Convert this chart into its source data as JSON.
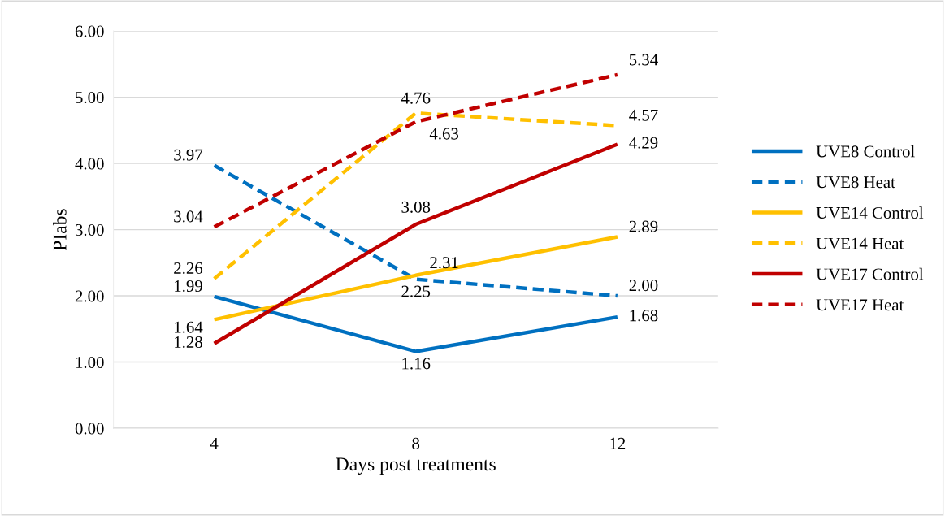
{
  "chart_data": {
    "type": "line",
    "xlabel": "Days post treatments",
    "ylabel": "PIabs",
    "categories": [
      "4",
      "8",
      "12"
    ],
    "series": [
      {
        "name": "UVE8 Control",
        "color": "#0070c0",
        "values": [
          1.99,
          1.16,
          1.68
        ],
        "value_labels": [
          "1.99",
          "1.16",
          "1.68"
        ],
        "line_style": "solid"
      },
      {
        "name": "UVE8 Heat",
        "color": "#0070c0",
        "values": [
          3.97,
          2.25,
          2.0
        ],
        "value_labels": [
          "3.97",
          "2.25",
          "2.00"
        ],
        "line_style": "dashed"
      },
      {
        "name": "UVE14 Control",
        "color": "#ffc000",
        "values": [
          1.64,
          2.31,
          2.89
        ],
        "value_labels": [
          "1.64",
          "2.31",
          "2.89"
        ],
        "line_style": "solid"
      },
      {
        "name": "UVE14 Heat",
        "color": "#ffc000",
        "values": [
          2.26,
          4.76,
          4.57
        ],
        "value_labels": [
          "2.26",
          "4.76",
          "4.57"
        ],
        "line_style": "dashed"
      },
      {
        "name": "UVE17 Control",
        "color": "#c00000",
        "values": [
          1.28,
          3.08,
          4.29
        ],
        "value_labels": [
          "1.28",
          "3.08",
          "4.29"
        ],
        "line_style": "solid"
      },
      {
        "name": "UVE17 Heat",
        "color": "#c00000",
        "values": [
          3.04,
          4.63,
          5.34
        ],
        "value_labels": [
          "3.04",
          "4.63",
          "5.34"
        ],
        "line_style": "dashed"
      }
    ],
    "ylim": [
      0,
      6
    ],
    "yticks": [
      {
        "value": 0,
        "label": "0.00"
      },
      {
        "value": 1,
        "label": "1.00"
      },
      {
        "value": 2,
        "label": "2.00"
      },
      {
        "value": 3,
        "label": "3.00"
      },
      {
        "value": 4,
        "label": "4.00"
      },
      {
        "value": 5,
        "label": "5.00"
      },
      {
        "value": 6,
        "label": "6.00"
      }
    ],
    "grid": "y",
    "legend": "right",
    "marker": "none"
  }
}
